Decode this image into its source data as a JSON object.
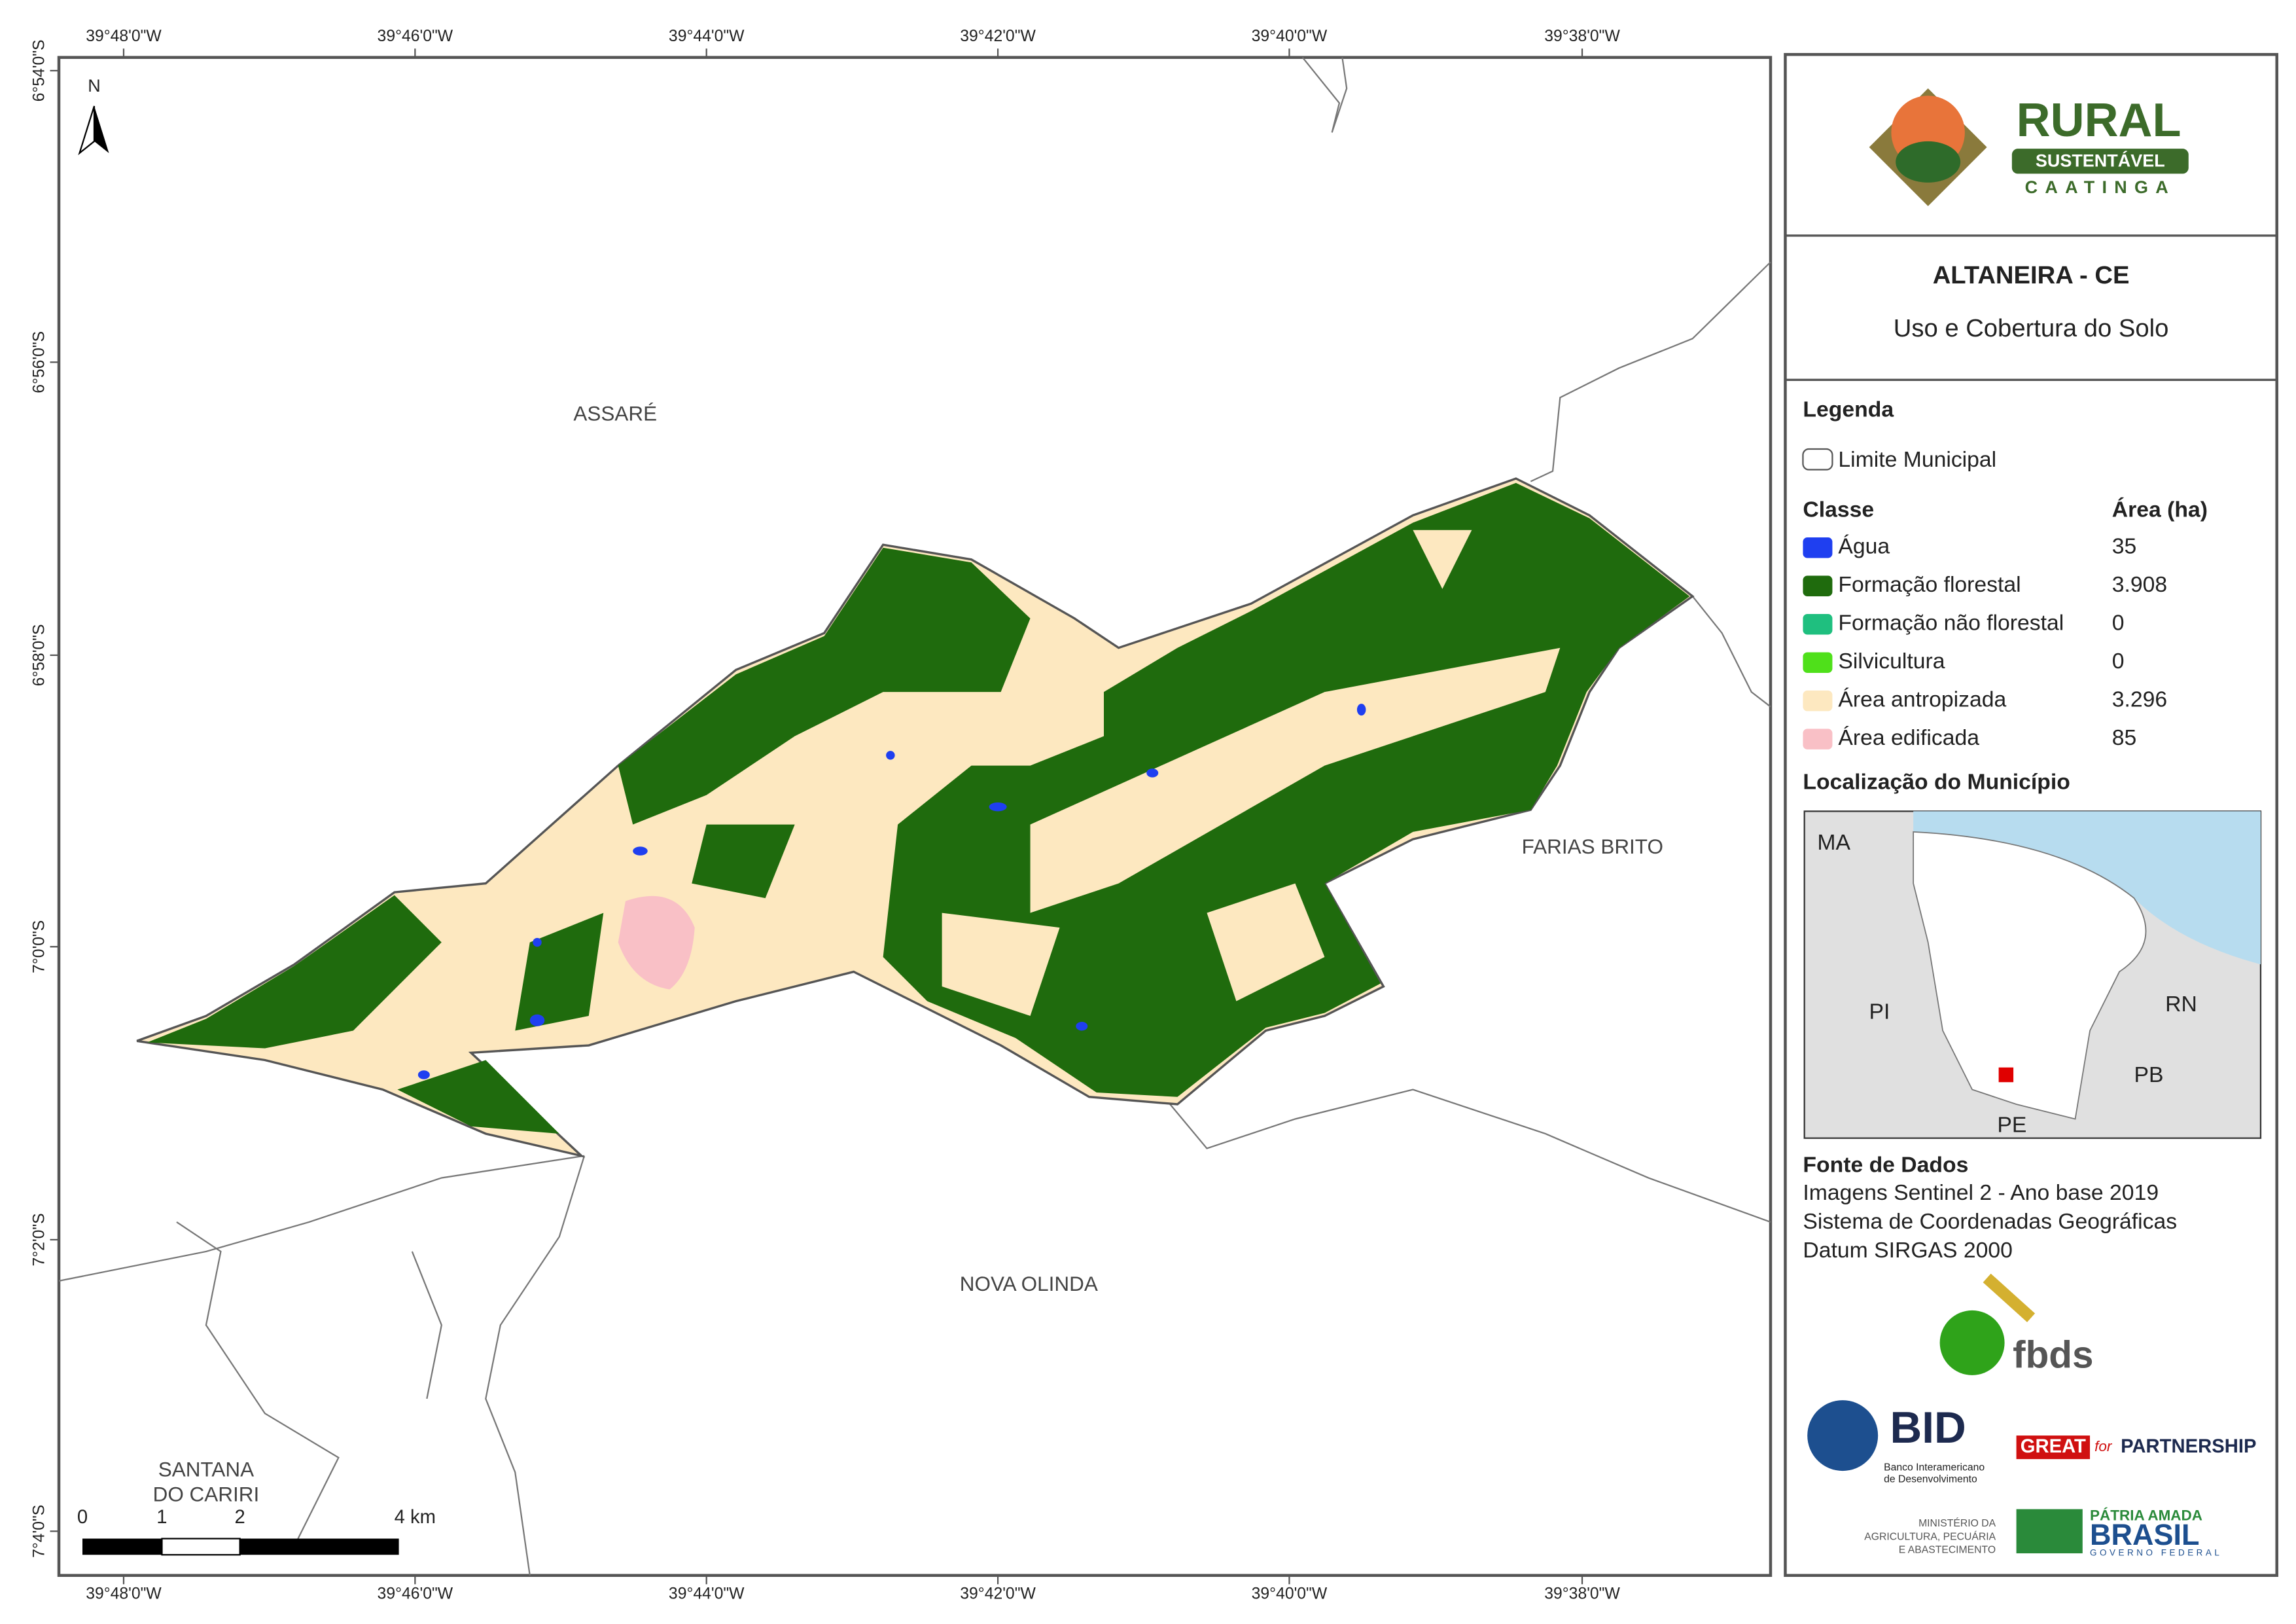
{
  "map": {
    "top_labels": [
      "39°48'0\"W",
      "39°46'0\"W",
      "39°44'0\"W",
      "39°42'0\"W",
      "39°40'0\"W",
      "39°38'0\"W"
    ],
    "bottom_labels": [
      "39°48'0\"W",
      "39°46'0\"W",
      "39°44'0\"W",
      "39°42'0\"W",
      "39°40'0\"W",
      "39°38'0\"W"
    ],
    "left_labels": [
      "6°54'0\"S",
      "6°56'0\"S",
      "6°58'0\"S",
      "7°0'0\"S",
      "7°2'0\"S",
      "7°4'0\"S"
    ],
    "north": "N",
    "places": [
      "ASSARÉ",
      "FARIAS BRITO",
      "NOVA OLINDA",
      "SANTANA",
      "DO CARIRI"
    ],
    "scale_labels": [
      "0",
      "1",
      "2",
      "4 km"
    ]
  },
  "panel": {
    "logo": {
      "title": "RURAL",
      "band": "SUSTENTÁVEL",
      "sub": "CAATINGA"
    },
    "title": "ALTANEIRA - CE",
    "subtitle": "Uso e Cobertura do Solo",
    "legend": {
      "title": "Legenda",
      "boundary": "Limite Municipal",
      "class_header": "Classe",
      "area_header": "Área (ha)",
      "classes": [
        {
          "name": "Água",
          "area": "35",
          "color": "#1f3ff0"
        },
        {
          "name": "Formação florestal",
          "area": "3.908",
          "color": "#1f6b0d"
        },
        {
          "name": "Formação não florestal",
          "area": "0",
          "color": "#1fbf7f"
        },
        {
          "name": "Silvicultura",
          "area": "0",
          "color": "#4fe01a"
        },
        {
          "name": "Área antropizada",
          "area": "3.296",
          "color": "#fde8c0"
        },
        {
          "name": "Área edificada",
          "area": "85",
          "color": "#f9c0c6"
        }
      ]
    },
    "location": {
      "title": "Localização do Município",
      "states": [
        "MA",
        "PI",
        "RN",
        "PB",
        "PE"
      ]
    },
    "sources": {
      "title": "Fonte de Dados",
      "lines": [
        "Imagens Sentinel 2 - Ano base 2019",
        "Sistema de Coordenadas Geográficas",
        "Datum SIRGAS 2000"
      ]
    },
    "partners": [
      "fbds",
      "BID",
      "Banco Interamericano",
      "de Desenvolvimento",
      "GREAT",
      "for",
      "PARTNERSHIP",
      "MINISTÉRIO DA",
      "AGRICULTURA, PECUÁRIA",
      "E ABASTECIMENTO",
      "PÁTRIA AMADA",
      "BRASIL",
      "GOVERNO FEDERAL"
    ]
  }
}
